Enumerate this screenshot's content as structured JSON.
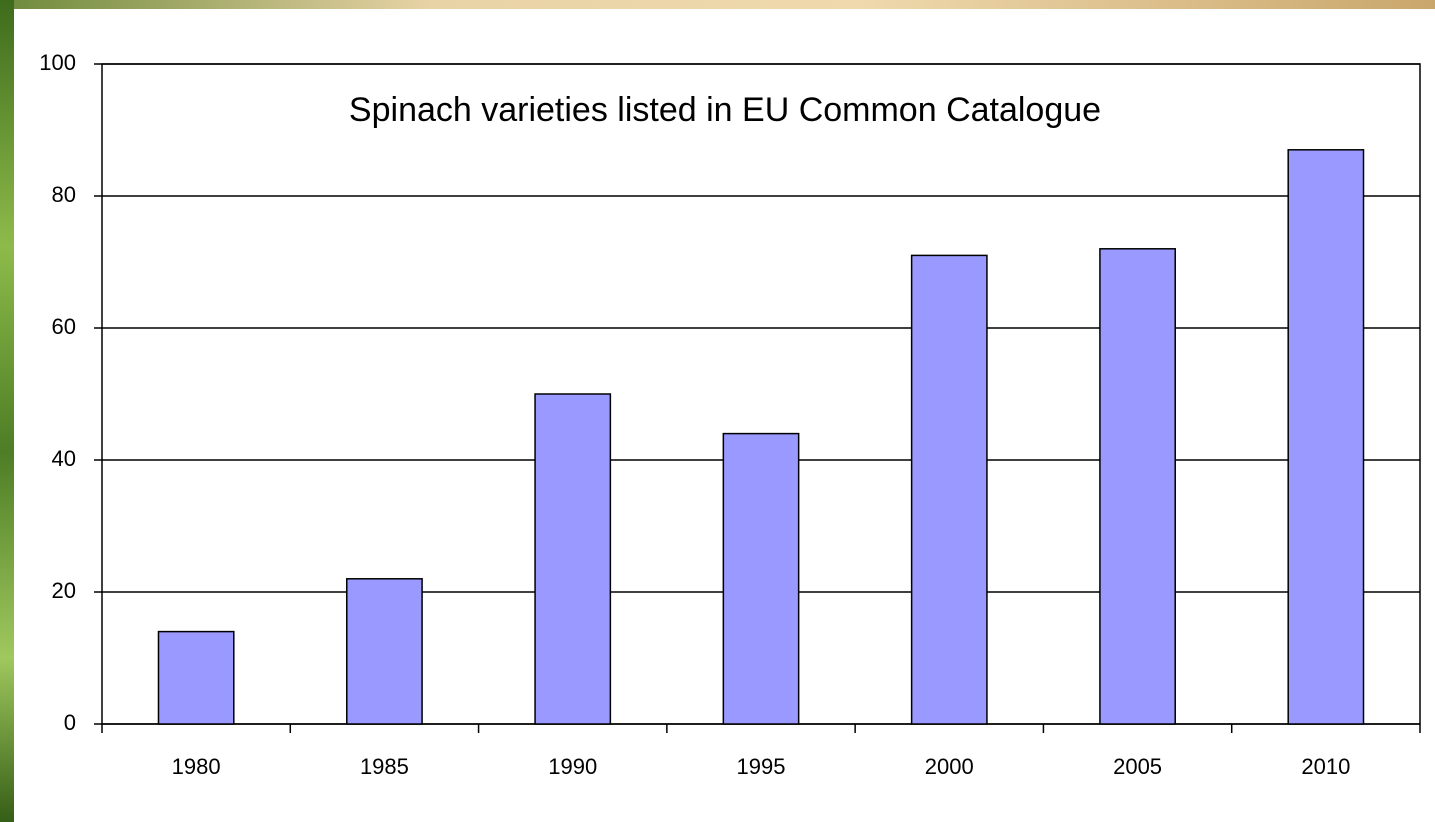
{
  "chart_data": {
    "type": "bar",
    "title": "Spinach varieties listed in EU Common Catalogue",
    "categories": [
      "1980",
      "1985",
      "1990",
      "1995",
      "2000",
      "2005",
      "2010"
    ],
    "values": [
      14,
      22,
      50,
      44,
      71,
      72,
      87
    ],
    "color": "#9999ff",
    "ylim": [
      0,
      100
    ],
    "yticks": [
      0,
      20,
      40,
      60,
      80,
      100
    ],
    "grid": true
  }
}
